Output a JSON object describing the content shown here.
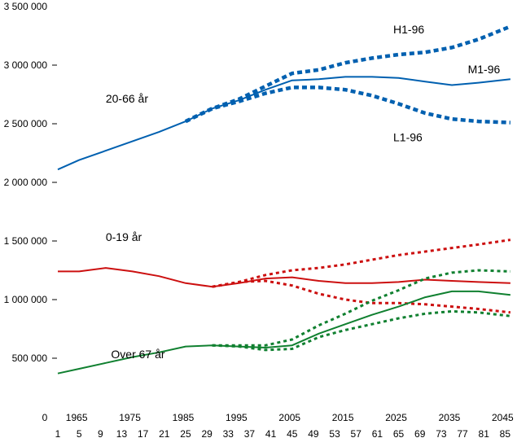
{
  "chart_data": {
    "type": "line",
    "title": "",
    "xlabel": "",
    "ylabel": "",
    "xlim": [
      1961,
      2046
    ],
    "ylim": [
      0,
      3500000
    ],
    "grid": false,
    "x_ticks_top": [
      {
        "label": "0",
        "x": null
      },
      {
        "label": "1965",
        "x": 1965
      },
      {
        "label": "1975",
        "x": 1975
      },
      {
        "label": "1985",
        "x": 1985
      },
      {
        "label": "1995",
        "x": 1995
      },
      {
        "label": "2005",
        "x": 2005
      },
      {
        "label": "2015",
        "x": 2015
      },
      {
        "label": "2025",
        "x": 2025
      },
      {
        "label": "2035",
        "x": 2035
      },
      {
        "label": "2045",
        "x": 2045
      }
    ],
    "x_ticks_bottom": [
      "1",
      "5",
      "9",
      "13",
      "17",
      "21",
      "25",
      "29",
      "33",
      "37",
      "41",
      "45",
      "49",
      "53",
      "57",
      "61",
      "65",
      "69",
      "73",
      "77",
      "81",
      "85"
    ],
    "y_ticks": [
      {
        "label": "500 000",
        "value": 500000
      },
      {
        "label": "1 000 000",
        "value": 1000000
      },
      {
        "label": "1 500 000",
        "value": 1500000
      },
      {
        "label": "2 000 000",
        "value": 2000000
      },
      {
        "label": "2 500 000",
        "value": 2500000
      },
      {
        "label": "3 000 000",
        "value": 3000000
      },
      {
        "label": "3 500 000",
        "value": 3500000
      }
    ],
    "annotations": [
      {
        "text": "20-66 år",
        "x": 1970,
        "y": 2680000
      },
      {
        "text": "0-19 år",
        "x": 1970,
        "y": 1500000
      },
      {
        "text": "Over 67 år",
        "x": 1971,
        "y": 500000
      },
      {
        "text": "H1-96",
        "x": 2024,
        "y": 3270000
      },
      {
        "text": "M1-96",
        "x": 2038,
        "y": 2930000
      },
      {
        "text": "L1-96",
        "x": 2024,
        "y": 2350000
      }
    ],
    "series": [
      {
        "group": "20-66 år",
        "style": "solid",
        "color": "#0060b0",
        "x": [
          1961,
          1965,
          1970,
          1975,
          1980,
          1985,
          1990,
          1995,
          2000,
          2005,
          2010,
          2015,
          2020,
          2025,
          2030,
          2035,
          2040,
          2046
        ],
        "y": [
          2110000,
          2190000,
          2270000,
          2350000,
          2430000,
          2520000,
          2630000,
          2700000,
          2790000,
          2870000,
          2880000,
          2900000,
          2900000,
          2890000,
          2860000,
          2830000,
          2850000,
          2880000
        ]
      },
      {
        "name": "H1-96",
        "group": "20-66 år",
        "style": "dotted",
        "color": "#0060b0",
        "x": [
          1985,
          1990,
          1995,
          2000,
          2005,
          2010,
          2015,
          2020,
          2025,
          2030,
          2035,
          2040,
          2046
        ],
        "y": [
          2520000,
          2630000,
          2710000,
          2820000,
          2930000,
          2960000,
          3020000,
          3060000,
          3090000,
          3110000,
          3150000,
          3220000,
          3330000
        ]
      },
      {
        "name": "L1-96",
        "group": "20-66 år",
        "style": "dotted",
        "color": "#0060b0",
        "x": [
          1985,
          1990,
          1995,
          2000,
          2005,
          2010,
          2015,
          2020,
          2025,
          2030,
          2035,
          2040,
          2046
        ],
        "y": [
          2520000,
          2630000,
          2690000,
          2760000,
          2810000,
          2810000,
          2790000,
          2740000,
          2670000,
          2590000,
          2540000,
          2520000,
          2510000
        ]
      },
      {
        "group": "0-19 år",
        "style": "solid",
        "color": "#cc1010",
        "x": [
          1961,
          1965,
          1970,
          1975,
          1980,
          1985,
          1990,
          1995,
          2000,
          2005,
          2010,
          2015,
          2020,
          2025,
          2030,
          2035,
          2040,
          2046
        ],
        "y": [
          1240000,
          1240000,
          1270000,
          1240000,
          1200000,
          1140000,
          1110000,
          1140000,
          1180000,
          1190000,
          1160000,
          1140000,
          1140000,
          1150000,
          1170000,
          1160000,
          1150000,
          1140000
        ]
      },
      {
        "group": "0-19 år",
        "style": "dotted",
        "color": "#cc1010",
        "x": [
          1990,
          1995,
          2000,
          2005,
          2010,
          2015,
          2020,
          2025,
          2030,
          2035,
          2040,
          2046
        ],
        "y": [
          1110000,
          1150000,
          1210000,
          1250000,
          1270000,
          1300000,
          1340000,
          1380000,
          1410000,
          1440000,
          1470000,
          1510000
        ]
      },
      {
        "group": "0-19 år",
        "style": "dotted",
        "color": "#cc1010",
        "x": [
          1990,
          1995,
          2000,
          2005,
          2010,
          2015,
          2020,
          2025,
          2030,
          2035,
          2040,
          2046
        ],
        "y": [
          1110000,
          1150000,
          1160000,
          1120000,
          1050000,
          1000000,
          970000,
          970000,
          960000,
          940000,
          920000,
          890000
        ]
      },
      {
        "group": "Over 67 år",
        "style": "solid",
        "color": "#108030",
        "x": [
          1961,
          1965,
          1970,
          1975,
          1980,
          1985,
          1990,
          1995,
          2000,
          2005,
          2010,
          2015,
          2020,
          2025,
          2030,
          2035,
          2040,
          2046
        ],
        "y": [
          370000,
          410000,
          460000,
          510000,
          550000,
          600000,
          610000,
          600000,
          590000,
          610000,
          710000,
          790000,
          870000,
          940000,
          1020000,
          1070000,
          1070000,
          1040000
        ]
      },
      {
        "group": "Over 67 år",
        "style": "dotted",
        "color": "#108030",
        "x": [
          1990,
          1995,
          2000,
          2005,
          2010,
          2015,
          2020,
          2025,
          2030,
          2035,
          2040,
          2046
        ],
        "y": [
          610000,
          610000,
          610000,
          660000,
          780000,
          880000,
          990000,
          1080000,
          1180000,
          1230000,
          1250000,
          1240000
        ]
      },
      {
        "group": "Over 67 år",
        "style": "dotted",
        "color": "#108030",
        "x": [
          1990,
          1995,
          2000,
          2005,
          2010,
          2015,
          2020,
          2025,
          2030,
          2035,
          2040,
          2046
        ],
        "y": [
          610000,
          600000,
          570000,
          580000,
          680000,
          740000,
          790000,
          840000,
          880000,
          900000,
          890000,
          860000
        ]
      }
    ]
  }
}
